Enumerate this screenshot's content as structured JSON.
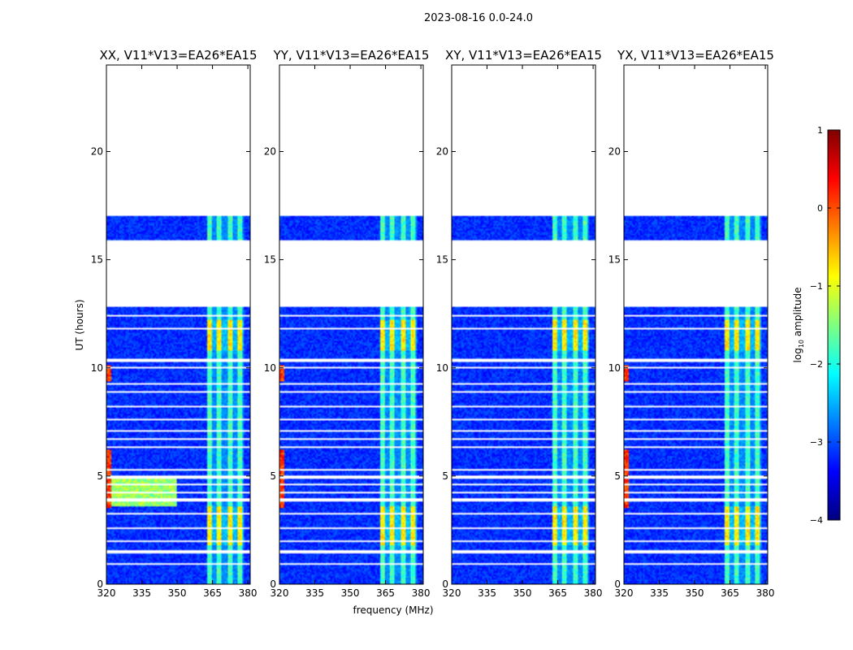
{
  "chart_data": {
    "type": "heatmap",
    "suptitle": "2023-08-16 0.0-24.0",
    "xlabel": "frequency (MHz)",
    "ylabel": "UT (hours)",
    "xlim": [
      320,
      381
    ],
    "ylim": [
      0,
      24
    ],
    "xticks": [
      320,
      335,
      350,
      365,
      380
    ],
    "xtick_labels": [
      "320",
      "335",
      "350",
      "365",
      "380"
    ],
    "yticks": [
      0,
      5,
      10,
      15,
      20
    ],
    "ytick_labels": [
      "0",
      "5",
      "10",
      "15",
      "20"
    ],
    "panels": [
      {
        "title": "XX, V11*V13=EA26*EA15",
        "pol": "XX"
      },
      {
        "title": "YY, V11*V13=EA26*EA15",
        "pol": "YY"
      },
      {
        "title": "XY, V11*V13=EA26*EA15",
        "pol": "XY"
      },
      {
        "title": "YX, V11*V13=EA26*EA15",
        "pol": "YX"
      }
    ],
    "data_time_ranges_hours": [
      [
        0,
        12.8
      ],
      [
        15.9,
        17.0
      ]
    ],
    "rfi_band_mhz": [
      362.5,
      378.5
    ],
    "colorbar": {
      "label": "log10 amplitude",
      "label_prefix": "log",
      "label_sub": "10",
      "label_suffix": " amplitude",
      "range": [
        -4,
        1
      ],
      "ticks": [
        1,
        0,
        -1,
        -2,
        -3,
        -4
      ],
      "tick_labels": [
        "1",
        "0",
        "−1",
        "−2",
        "−3",
        "−4"
      ],
      "colormap": "jet"
    }
  }
}
